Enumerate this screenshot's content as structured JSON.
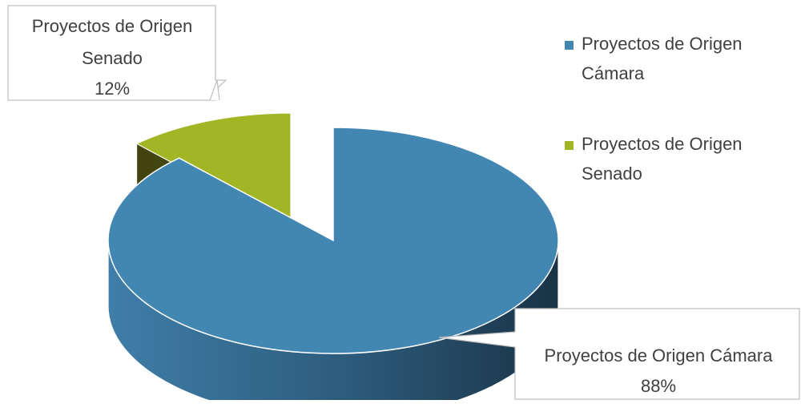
{
  "chart_data": {
    "type": "pie",
    "style": "3d-exploded",
    "slices": [
      {
        "label": "Proyectos de Origen Cámara",
        "value": 88,
        "percent_label": "88%",
        "color": "#4286b2"
      },
      {
        "label": "Proyectos de Origen Senado",
        "value": 12,
        "percent_label": "12%",
        "color": "#a2b524"
      }
    ],
    "legend": {
      "position": "top-right",
      "entries": [
        {
          "line1": "Proyectos de Origen",
          "line2": "Cámara",
          "color": "#4286b2"
        },
        {
          "line1": "Proyectos de Origen",
          "line2": "Senado",
          "color": "#a2b524"
        }
      ]
    },
    "callouts": [
      {
        "lines": [
          "Proyectos de Origen Cámara",
          "88%"
        ]
      },
      {
        "lines": [
          "Proyectos de Origen",
          "Senado",
          "12%"
        ]
      }
    ]
  }
}
